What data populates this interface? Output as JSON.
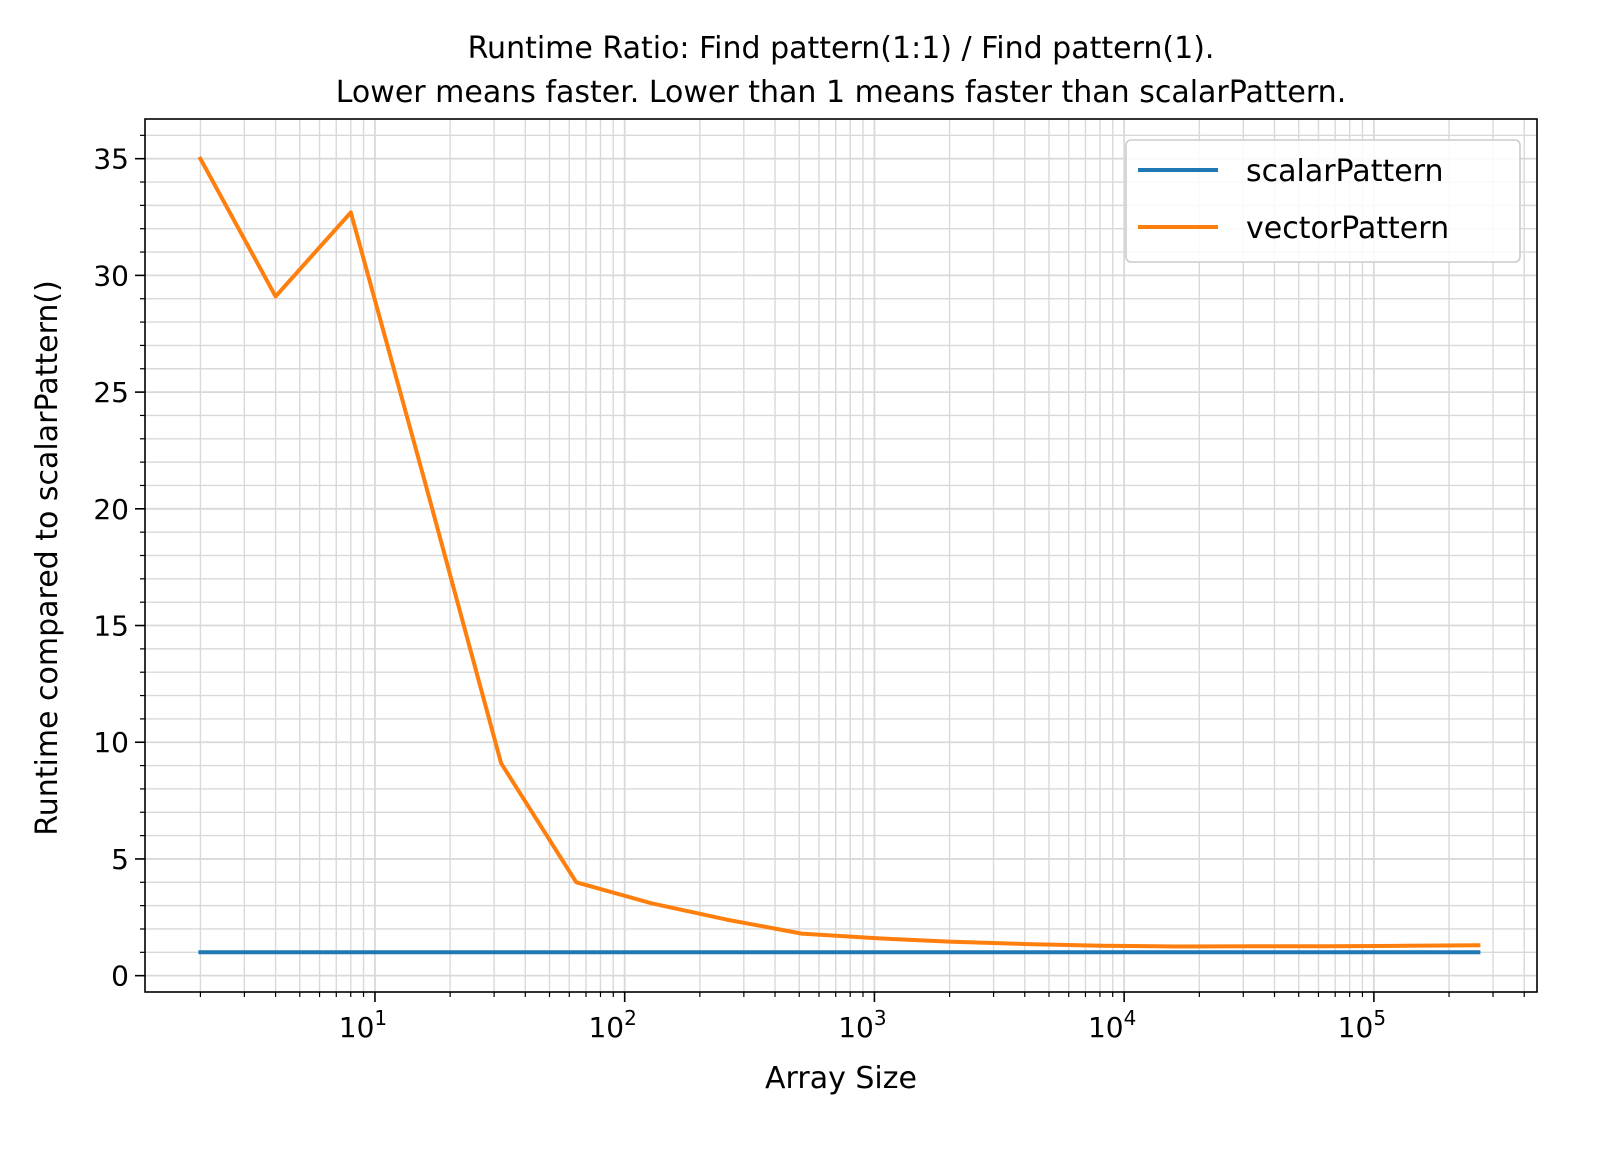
{
  "chart_data": {
    "type": "line",
    "title": "Runtime Ratio: Find pattern(1:1) / Find pattern(1).",
    "subtitle": "Lower means faster. Lower than 1 means faster than scalarPattern.",
    "xlabel": "Array Size",
    "ylabel": "Runtime compared to scalarPattern()",
    "xscale": "log",
    "xlim": [
      1.2,
      450000
    ],
    "ylim": [
      -0.7,
      36.7
    ],
    "x_ticks": [
      {
        "value": 10,
        "base": "10",
        "exp": "1"
      },
      {
        "value": 100,
        "base": "10",
        "exp": "2"
      },
      {
        "value": 1000,
        "base": "10",
        "exp": "3"
      },
      {
        "value": 10000,
        "base": "10",
        "exp": "4"
      },
      {
        "value": 100000,
        "base": "10",
        "exp": "5"
      }
    ],
    "y_ticks": [
      "0",
      "5",
      "10",
      "15",
      "20",
      "25",
      "30",
      "35"
    ],
    "grid": true,
    "legend_position": "top-right",
    "x": [
      2,
      4,
      8,
      16,
      32,
      64,
      128,
      256,
      512,
      1024,
      2048,
      4096,
      8192,
      16384,
      32768,
      65536,
      131072,
      262144
    ],
    "series": [
      {
        "name": "scalarPattern",
        "color": "#1f77b4",
        "values": [
          1,
          1,
          1,
          1,
          1,
          1,
          1,
          1,
          1,
          1,
          1,
          1,
          1,
          1,
          1,
          1,
          1,
          1
        ]
      },
      {
        "name": "vectorPattern",
        "color": "#ff7f0e",
        "values": [
          35.0,
          29.1,
          32.7,
          21.0,
          9.1,
          4.0,
          3.1,
          2.4,
          1.8,
          1.6,
          1.45,
          1.35,
          1.28,
          1.25,
          1.26,
          1.26,
          1.28,
          1.3
        ]
      }
    ]
  }
}
